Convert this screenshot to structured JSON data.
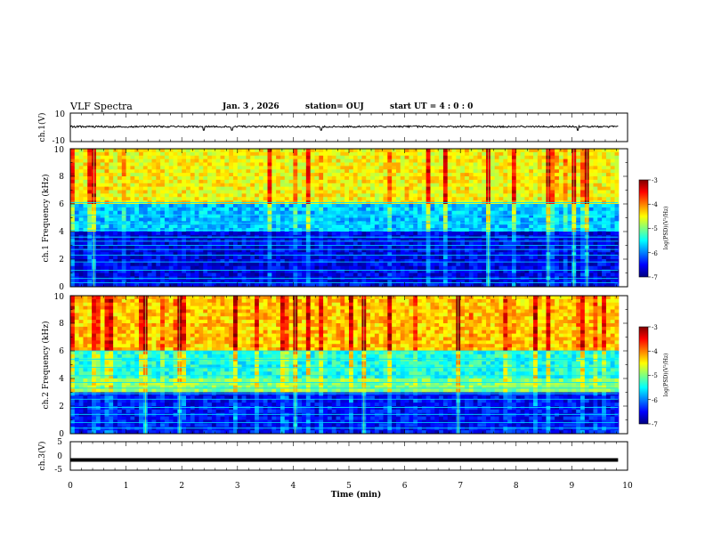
{
  "header": {
    "title": "VLF Spectra",
    "date": "Jan. 3 , 2026",
    "station": "station= OUJ",
    "start_ut": "start UT = 4 : 0 : 0"
  },
  "colors": {
    "colormap": [
      "#00007f",
      "#0000ff",
      "#007fff",
      "#00ffff",
      "#7fff7f",
      "#ffff00",
      "#ff7f00",
      "#ff0000",
      "#7f0000"
    ]
  },
  "chart_data": [
    {
      "type": "line",
      "panel": "ch1-waveform",
      "ylabel": "ch.1(V)",
      "ylim": [
        -10,
        10
      ],
      "yticks": [
        "10",
        "-10"
      ],
      "xlim": [
        0,
        10
      ],
      "signal": "noise around +0.5 V (amplitude about ±0.6 V) with a few spikes down to about -2 V near 2.4, 2.9, 4.5 and 9.1 min",
      "x_range_data": [
        0,
        9.83
      ]
    },
    {
      "type": "heatmap",
      "panel": "ch1-spectrogram",
      "ylabel": "ch.1 Frequency (kHz)",
      "ylim": [
        0,
        10
      ],
      "yticks": [
        "0",
        "2",
        "4",
        "6",
        "8",
        "10"
      ],
      "xlim": [
        0,
        10
      ],
      "colorbar": {
        "label": "log(PSD)(V²/Hz)",
        "range": [
          -7,
          -3
        ],
        "ticks": [
          "-3",
          "-4",
          "-5",
          "-6",
          "-7"
        ]
      },
      "description_levels": {
        "low_freq_floor": -6.6,
        "mid_band_6_to_10kHz": -4.5,
        "impulsive_sferics": -3.2
      },
      "horizontal_lines_khz": [
        0.3,
        0.6,
        1.2,
        1.8,
        2.3,
        2.7,
        3.0,
        3.3,
        3.6,
        4.1,
        4.6,
        5.2,
        6.1
      ]
    },
    {
      "type": "heatmap",
      "panel": "ch2-spectrogram",
      "ylabel": "ch.2 Frequency (kHz)",
      "ylim": [
        0,
        10
      ],
      "yticks": [
        "0",
        "2",
        "4",
        "6",
        "8",
        "10"
      ],
      "xlim": [
        0,
        10
      ],
      "colorbar": {
        "label": "log(PSD)(V²/Hz)",
        "range": [
          -7,
          -3
        ],
        "ticks": [
          "-3",
          "-4",
          "-5",
          "-6",
          "-7"
        ]
      },
      "description_levels": {
        "low_freq_floor": -6.5,
        "band_3_to_4kHz": -5.0,
        "mid_band_6_to_10kHz": -4.3,
        "impulsive_sferics": -3.1
      },
      "horizontal_lines_khz": [
        0.4,
        0.8,
        1.4,
        1.9,
        2.5,
        2.9,
        3.3,
        3.7,
        4.2,
        4.8,
        5.4,
        6.0
      ]
    },
    {
      "type": "line",
      "panel": "ch3-waveform",
      "ylabel": "ch.3(V)",
      "ylim": [
        -5,
        5
      ],
      "yticks": [
        "5",
        "0",
        "-5"
      ],
      "xlim": [
        0,
        10
      ],
      "signal": "thick flat trace near -1.4 V",
      "level": -1.4,
      "x_range_data": [
        0,
        9.83
      ]
    }
  ],
  "xaxis": {
    "label": "Time (min)",
    "ticks": [
      "0",
      "1",
      "2",
      "3",
      "4",
      "5",
      "6",
      "7",
      "8",
      "9",
      "10"
    ],
    "range": [
      0,
      10
    ]
  }
}
